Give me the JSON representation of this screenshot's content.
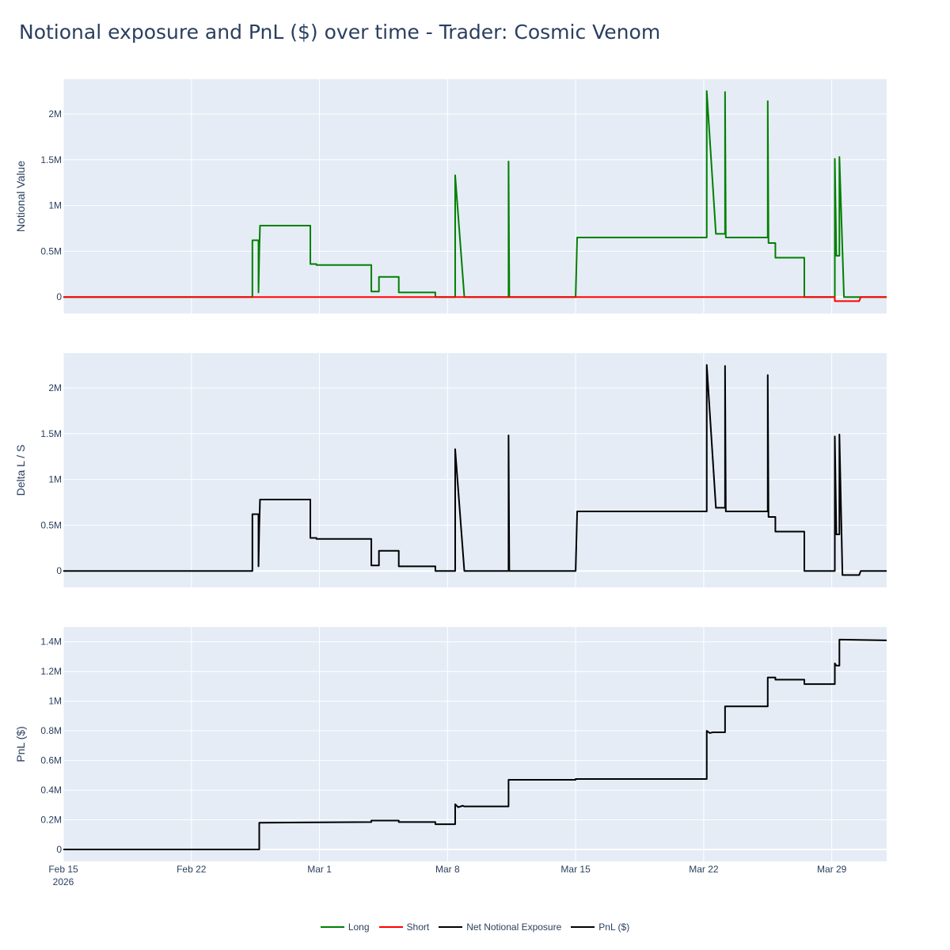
{
  "title": "Notional exposure and PnL ($) over time - Trader: Cosmic Venom",
  "colors": {
    "plot_bg": "#E5ECF6",
    "grid": "#ffffff",
    "long": "#008000",
    "short": "#FF0000",
    "net": "#000000",
    "pnl": "#000000"
  },
  "legend": [
    {
      "label": "Long",
      "color": "#008000"
    },
    {
      "label": "Short",
      "color": "#FF0000"
    },
    {
      "label": "Net Notional Exposure",
      "color": "#000000"
    },
    {
      "label": "PnL ($)",
      "color": "#000000"
    }
  ],
  "chart_data": [
    {
      "type": "line",
      "ylabel": "Notional Value",
      "xlim": [
        "2026-02-15",
        "2026-04-01"
      ],
      "ylim": [
        -180000,
        2380000
      ],
      "yticks": [
        0,
        500000,
        1000000,
        1500000,
        2000000
      ],
      "ytick_labels": [
        "0",
        "0.5M",
        "1M",
        "1.5M",
        "2M"
      ],
      "legend_position": "bottom-center",
      "series": [
        {
          "name": "Long",
          "color": "#008000",
          "points": [
            [
              "2026-02-15 00:00",
              0
            ],
            [
              "2026-02-25 08:00",
              0
            ],
            [
              "2026-02-25 08:00",
              620000
            ],
            [
              "2026-02-25 16:00",
              620000
            ],
            [
              "2026-02-25 16:00",
              50000
            ],
            [
              "2026-02-25 17:00",
              480000
            ],
            [
              "2026-02-25 18:00",
              780000
            ],
            [
              "2026-02-28 12:00",
              780000
            ],
            [
              "2026-02-28 12:00",
              360000
            ],
            [
              "2026-02-28 20:00",
              360000
            ],
            [
              "2026-02-28 20:00",
              350000
            ],
            [
              "2026-03-03 20:00",
              350000
            ],
            [
              "2026-03-03 20:00",
              60000
            ],
            [
              "2026-03-04 06:00",
              60000
            ],
            [
              "2026-03-04 06:00",
              220000
            ],
            [
              "2026-03-05 08:00",
              220000
            ],
            [
              "2026-03-05 08:00",
              50000
            ],
            [
              "2026-03-07 08:00",
              50000
            ],
            [
              "2026-03-07 08:00",
              0
            ],
            [
              "2026-03-08 10:00",
              0
            ],
            [
              "2026-03-08 10:00",
              1330000
            ],
            [
              "2026-03-08 22:00",
              0
            ],
            [
              "2026-03-11 08:00",
              0
            ],
            [
              "2026-03-11 08:00",
              1480000
            ],
            [
              "2026-03-11 09:00",
              0
            ],
            [
              "2026-03-15 00:00",
              0
            ],
            [
              "2026-03-15 02:00",
              650000
            ],
            [
              "2026-03-22 04:00",
              650000
            ],
            [
              "2026-03-22 04:00",
              2250000
            ],
            [
              "2026-03-22 16:00",
              690000
            ],
            [
              "2026-03-23 04:00",
              690000
            ],
            [
              "2026-03-23 04:00",
              2240000
            ],
            [
              "2026-03-23 05:00",
              650000
            ],
            [
              "2026-03-25 12:00",
              650000
            ],
            [
              "2026-03-25 12:00",
              2140000
            ],
            [
              "2026-03-25 13:00",
              590000
            ],
            [
              "2026-03-25 22:00",
              590000
            ],
            [
              "2026-03-25 22:00",
              430000
            ],
            [
              "2026-03-27 12:00",
              430000
            ],
            [
              "2026-03-27 12:00",
              0
            ],
            [
              "2026-03-29 04:00",
              0
            ],
            [
              "2026-03-29 04:00",
              1510000
            ],
            [
              "2026-03-29 06:00",
              450000
            ],
            [
              "2026-03-29 10:00",
              450000
            ],
            [
              "2026-03-29 10:00",
              1530000
            ],
            [
              "2026-03-29 16:00",
              0
            ],
            [
              "2026-04-01 00:00",
              0
            ]
          ]
        },
        {
          "name": "Short",
          "color": "#FF0000",
          "points": [
            [
              "2026-02-15 00:00",
              0
            ],
            [
              "2026-03-29 04:00",
              0
            ],
            [
              "2026-03-29 04:00",
              -45000
            ],
            [
              "2026-03-30 12:00",
              -45000
            ],
            [
              "2026-03-30 14:00",
              0
            ],
            [
              "2026-04-01 00:00",
              0
            ]
          ]
        }
      ]
    },
    {
      "type": "line",
      "ylabel": "Delta L / S",
      "xlim": [
        "2026-02-15",
        "2026-04-01"
      ],
      "ylim": [
        -180000,
        2380000
      ],
      "yticks": [
        0,
        500000,
        1000000,
        1500000,
        2000000
      ],
      "ytick_labels": [
        "0",
        "0.5M",
        "1M",
        "1.5M",
        "2M"
      ],
      "series": [
        {
          "name": "Net Notional Exposure",
          "color": "#000000",
          "points": [
            [
              "2026-02-15 00:00",
              0
            ],
            [
              "2026-02-25 08:00",
              0
            ],
            [
              "2026-02-25 08:00",
              620000
            ],
            [
              "2026-02-25 16:00",
              620000
            ],
            [
              "2026-02-25 16:00",
              50000
            ],
            [
              "2026-02-25 17:00",
              480000
            ],
            [
              "2026-02-25 18:00",
              780000
            ],
            [
              "2026-02-28 12:00",
              780000
            ],
            [
              "2026-02-28 12:00",
              360000
            ],
            [
              "2026-02-28 20:00",
              360000
            ],
            [
              "2026-02-28 20:00",
              350000
            ],
            [
              "2026-03-03 20:00",
              350000
            ],
            [
              "2026-03-03 20:00",
              60000
            ],
            [
              "2026-03-04 06:00",
              60000
            ],
            [
              "2026-03-04 06:00",
              220000
            ],
            [
              "2026-03-05 08:00",
              220000
            ],
            [
              "2026-03-05 08:00",
              50000
            ],
            [
              "2026-03-07 08:00",
              50000
            ],
            [
              "2026-03-07 08:00",
              0
            ],
            [
              "2026-03-08 10:00",
              0
            ],
            [
              "2026-03-08 10:00",
              1330000
            ],
            [
              "2026-03-08 22:00",
              0
            ],
            [
              "2026-03-11 08:00",
              0
            ],
            [
              "2026-03-11 08:00",
              1480000
            ],
            [
              "2026-03-11 09:00",
              0
            ],
            [
              "2026-03-15 00:00",
              0
            ],
            [
              "2026-03-15 02:00",
              650000
            ],
            [
              "2026-03-22 04:00",
              650000
            ],
            [
              "2026-03-22 04:00",
              2250000
            ],
            [
              "2026-03-22 16:00",
              690000
            ],
            [
              "2026-03-23 04:00",
              690000
            ],
            [
              "2026-03-23 04:00",
              2240000
            ],
            [
              "2026-03-23 05:00",
              650000
            ],
            [
              "2026-03-25 12:00",
              650000
            ],
            [
              "2026-03-25 12:00",
              2140000
            ],
            [
              "2026-03-25 13:00",
              590000
            ],
            [
              "2026-03-25 22:00",
              590000
            ],
            [
              "2026-03-25 22:00",
              430000
            ],
            [
              "2026-03-27 12:00",
              430000
            ],
            [
              "2026-03-27 12:00",
              0
            ],
            [
              "2026-03-29 04:00",
              0
            ],
            [
              "2026-03-29 04:00",
              1470000
            ],
            [
              "2026-03-29 06:00",
              400000
            ],
            [
              "2026-03-29 10:00",
              400000
            ],
            [
              "2026-03-29 10:00",
              1490000
            ],
            [
              "2026-03-29 14:00",
              -45000
            ],
            [
              "2026-03-30 12:00",
              -45000
            ],
            [
              "2026-03-30 14:00",
              0
            ],
            [
              "2026-04-01 00:00",
              0
            ]
          ]
        }
      ]
    },
    {
      "type": "line",
      "ylabel": "PnL ($)",
      "xlim": [
        "2026-02-15",
        "2026-04-01"
      ],
      "ylim": [
        -80000,
        1500000
      ],
      "yticks": [
        0,
        200000,
        400000,
        600000,
        800000,
        1000000,
        1200000,
        1400000
      ],
      "ytick_labels": [
        "0",
        "0.2M",
        "0.4M",
        "0.6M",
        "0.8M",
        "1M",
        "1.2M",
        "1.4M"
      ],
      "xtick_labels": [
        "Feb 15",
        "Feb 22",
        "Mar 1",
        "Mar 8",
        "Mar 15",
        "Mar 22",
        "Mar 29"
      ],
      "xtick_dates": [
        "2026-02-15",
        "2026-02-22",
        "2026-03-01",
        "2026-03-08",
        "2026-03-15",
        "2026-03-22",
        "2026-03-29"
      ],
      "x_year_label": "2026",
      "series": [
        {
          "name": "PnL ($)",
          "color": "#000000",
          "points": [
            [
              "2026-02-15 00:00",
              0
            ],
            [
              "2026-02-25 17:00",
              0
            ],
            [
              "2026-02-25 17:00",
              180000
            ],
            [
              "2026-03-03 20:00",
              185000
            ],
            [
              "2026-03-03 20:00",
              195000
            ],
            [
              "2026-03-05 08:00",
              195000
            ],
            [
              "2026-03-05 08:00",
              185000
            ],
            [
              "2026-03-07 08:00",
              185000
            ],
            [
              "2026-03-07 08:00",
              170000
            ],
            [
              "2026-03-08 10:00",
              170000
            ],
            [
              "2026-03-08 10:00",
              305000
            ],
            [
              "2026-03-08 14:00",
              285000
            ],
            [
              "2026-03-08 20:00",
              295000
            ],
            [
              "2026-03-08 22:00",
              290000
            ],
            [
              "2026-03-11 08:00",
              290000
            ],
            [
              "2026-03-11 08:00",
              470000
            ],
            [
              "2026-03-15 00:00",
              470000
            ],
            [
              "2026-03-15 00:00",
              475000
            ],
            [
              "2026-03-22 04:00",
              475000
            ],
            [
              "2026-03-22 04:00",
              800000
            ],
            [
              "2026-03-22 08:00",
              785000
            ],
            [
              "2026-03-22 12:00",
              790000
            ],
            [
              "2026-03-23 04:00",
              790000
            ],
            [
              "2026-03-23 04:00",
              965000
            ],
            [
              "2026-03-25 12:00",
              965000
            ],
            [
              "2026-03-25 12:00",
              1160000
            ],
            [
              "2026-03-25 22:00",
              1160000
            ],
            [
              "2026-03-25 22:00",
              1145000
            ],
            [
              "2026-03-27 12:00",
              1145000
            ],
            [
              "2026-03-27 12:00",
              1115000
            ],
            [
              "2026-03-29 04:00",
              1115000
            ],
            [
              "2026-03-29 04:00",
              1255000
            ],
            [
              "2026-03-29 06:00",
              1240000
            ],
            [
              "2026-03-29 10:00",
              1240000
            ],
            [
              "2026-03-29 10:00",
              1415000
            ],
            [
              "2026-04-01 00:00",
              1410000
            ]
          ]
        }
      ]
    }
  ]
}
